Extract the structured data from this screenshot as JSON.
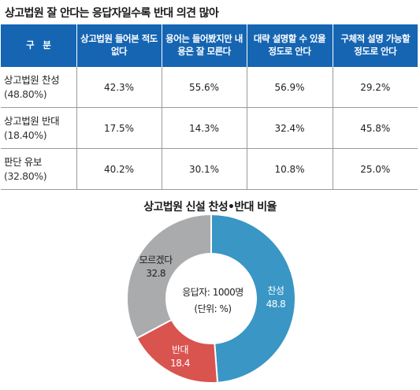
{
  "title": "상고법원 잘 안다는 응답자일수록 반대 의견 많아",
  "table": {
    "header": [
      "구　분",
      "상고법원 들어본 적도 없다",
      "용어는 들어봤지만 내용은 잘 모른다",
      "대략 설명할 수 있을 정도로 안다",
      "구체적 설명 가능할 정도로 안다"
    ],
    "rows": [
      {
        "label": "상고법원 찬성",
        "sub": "(48.80%)",
        "values": [
          "42.3%",
          "55.6%",
          "56.9%",
          "29.2%"
        ]
      },
      {
        "label": "상고법원 반대",
        "sub": "(18.40%)",
        "values": [
          "17.5%",
          "14.3%",
          "32.4%",
          "45.8%"
        ]
      },
      {
        "label": "판단 유보",
        "sub": "(32.80%)",
        "values": [
          "40.2%",
          "30.1%",
          "10.8%",
          "25.0%"
        ]
      }
    ]
  },
  "chart_data": {
    "type": "pie",
    "title": "상고법원 신설 찬성•반대 비율",
    "center_text": [
      "응답자: 1000명",
      "(단위: %)"
    ],
    "slices": [
      {
        "label": "찬성",
        "value": 48.8,
        "value_text": "48.8",
        "color": "#3a96c4"
      },
      {
        "label": "반대",
        "value": 18.4,
        "value_text": "18.4",
        "color": "#d9534f"
      },
      {
        "label": "모르겠다",
        "value": 32.8,
        "value_text": "32.8",
        "color": "#a9abad"
      }
    ]
  }
}
